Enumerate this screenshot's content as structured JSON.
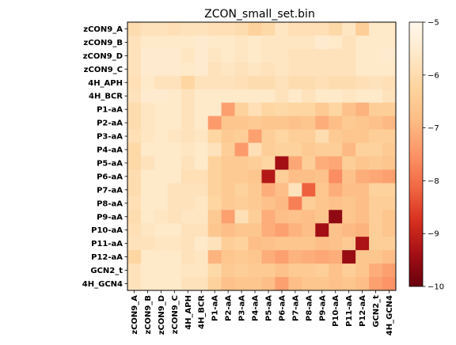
{
  "chart_data": {
    "type": "heatmap",
    "title": "ZCON_small_set.bin",
    "row_labels": [
      "zCON9_A",
      "zCON9_B",
      "zCON9_D",
      "zCON9_C",
      "4H_APH",
      "4H_BCR",
      "P1-aA",
      "P2-aA",
      "P3-aA",
      "P4-aA",
      "P5-aA",
      "P6-aA",
      "P7-aA",
      "P8-aA",
      "P9-aA",
      "P10-aA",
      "P11-aA",
      "P12-aA",
      "GCN2_t",
      "4H_GCN4"
    ],
    "col_labels": [
      "zCON9_A",
      "zCON9_B",
      "zCON9_D",
      "zCON9_C",
      "4H_APH",
      "4H_BCR",
      "P1-aA",
      "P2-aA",
      "P3-aA",
      "P4-aA",
      "P5-aA",
      "P6-aA",
      "P7-aA",
      "P8-aA",
      "P9-aA",
      "P10-aA",
      "P11-aA",
      "P12-aA",
      "GCN2_t",
      "4H_GCN4"
    ],
    "colormap": "OrRd_r",
    "vmin": -10,
    "vmax": -5,
    "colorbar_ticks": [
      "-5",
      "-6",
      "-7",
      "-8",
      "-9",
      "-10"
    ],
    "colors": [
      "#67000d",
      "#a50f15",
      "#d7301f",
      "#f16843",
      "#fc9467",
      "#fdbb84",
      "#fdd49e",
      "#fee8c8",
      "#fff7ec"
    ],
    "values": [
      [
        -6.0,
        -5.8,
        -5.8,
        -5.9,
        -5.8,
        -5.8,
        -5.9,
        -5.9,
        -6.0,
        -6.3,
        -6.1,
        -5.7,
        -5.9,
        -5.9,
        -5.9,
        -6.1,
        -5.7,
        -6.4,
        -5.6,
        -5.6
      ],
      [
        -5.8,
        -5.6,
        -5.6,
        -5.6,
        -5.6,
        -5.5,
        -5.6,
        -5.6,
        -5.7,
        -5.6,
        -5.7,
        -5.7,
        -5.7,
        -5.7,
        -5.5,
        -5.6,
        -5.8,
        -5.6,
        -5.6,
        -5.6
      ],
      [
        -5.8,
        -5.5,
        -5.5,
        -5.5,
        -5.7,
        -5.5,
        -5.7,
        -5.6,
        -5.7,
        -5.6,
        -5.7,
        -5.7,
        -5.8,
        -5.8,
        -5.8,
        -5.8,
        -5.8,
        -5.6,
        -5.6,
        -5.5
      ],
      [
        -5.8,
        -5.5,
        -5.5,
        -5.5,
        -5.6,
        -5.5,
        -5.8,
        -5.7,
        -5.8,
        -5.7,
        -5.8,
        -5.7,
        -5.8,
        -5.8,
        -5.8,
        -5.8,
        -5.8,
        -5.6,
        -5.6,
        -5.6
      ],
      [
        -5.9,
        -5.6,
        -5.8,
        -5.8,
        -6.2,
        -5.8,
        -5.8,
        -5.8,
        -5.9,
        -6.0,
        -6.0,
        -5.8,
        -6.0,
        -6.0,
        -5.9,
        -6.0,
        -6.0,
        -5.9,
        -5.8,
        -5.9
      ],
      [
        -5.8,
        -5.5,
        -5.5,
        -5.6,
        -5.8,
        -5.6,
        -5.6,
        -5.6,
        -5.6,
        -5.6,
        -5.6,
        -5.8,
        -5.6,
        -5.8,
        -5.6,
        -5.6,
        -5.7,
        -5.6,
        -5.6,
        -5.8
      ],
      [
        -6.0,
        -5.7,
        -5.6,
        -5.6,
        -5.8,
        -5.6,
        -5.6,
        -7.3,
        -6.3,
        -5.9,
        -6.2,
        -6.1,
        -6.2,
        -6.2,
        -6.5,
        -6.2,
        -6.7,
        -7.0,
        -6.4,
        -6.4
      ],
      [
        -6.0,
        -5.7,
        -5.6,
        -5.6,
        -5.8,
        -5.6,
        -7.4,
        -6.6,
        -6.6,
        -6.5,
        -6.6,
        -6.6,
        -6.7,
        -6.6,
        -7.1,
        -6.8,
        -6.5,
        -6.6,
        -6.7,
        -6.9
      ],
      [
        -5.9,
        -5.7,
        -5.6,
        -5.7,
        -5.8,
        -5.7,
        -6.2,
        -6.5,
        -6.4,
        -7.3,
        -6.4,
        -6.2,
        -6.4,
        -6.4,
        -6.0,
        -6.5,
        -6.6,
        -6.6,
        -6.4,
        -6.4
      ],
      [
        -6.1,
        -5.6,
        -5.6,
        -5.6,
        -5.7,
        -5.6,
        -5.8,
        -6.4,
        -7.4,
        -5.9,
        -6.4,
        -6.3,
        -6.3,
        -6.5,
        -6.4,
        -6.4,
        -6.9,
        -6.3,
        -6.3,
        -6.5
      ],
      [
        -6.1,
        -5.8,
        -5.6,
        -5.6,
        -5.8,
        -5.6,
        -6.3,
        -6.5,
        -6.5,
        -6.4,
        -6.2,
        -9.4,
        -7.2,
        -6.4,
        -7.1,
        -7.2,
        -6.4,
        -6.6,
        -6.5,
        -6.6
      ],
      [
        -6.0,
        -5.6,
        -5.6,
        -5.6,
        -5.9,
        -5.9,
        -6.3,
        -6.5,
        -6.5,
        -6.6,
        -9.2,
        -6.4,
        -6.8,
        -6.8,
        -6.7,
        -7.6,
        -6.7,
        -7.1,
        -7.2,
        -7.3
      ],
      [
        -6.0,
        -5.6,
        -5.6,
        -5.8,
        -5.8,
        -5.8,
        -6.3,
        -6.5,
        -6.3,
        -6.5,
        -7.1,
        -6.8,
        -5.8,
        -8.2,
        -6.6,
        -7.1,
        -6.8,
        -6.8,
        -6.3,
        -6.3
      ],
      [
        -5.9,
        -5.6,
        -5.6,
        -5.8,
        -5.8,
        -5.7,
        -6.2,
        -6.5,
        -6.4,
        -6.5,
        -6.7,
        -6.9,
        -7.8,
        -6.4,
        -6.6,
        -6.7,
        -6.6,
        -6.8,
        -6.4,
        -6.4
      ],
      [
        -6.0,
        -5.6,
        -5.7,
        -5.8,
        -5.7,
        -5.7,
        -6.5,
        -7.3,
        -5.9,
        -6.4,
        -7.1,
        -6.8,
        -6.7,
        -6.8,
        -6.6,
        -9.6,
        -6.6,
        -6.8,
        -6.4,
        -6.6
      ],
      [
        -5.9,
        -5.7,
        -5.6,
        -5.6,
        -5.8,
        -5.8,
        -6.6,
        -6.8,
        -6.6,
        -6.6,
        -7.1,
        -7.3,
        -7.0,
        -6.8,
        -9.4,
        -6.7,
        -6.9,
        -7.0,
        -6.4,
        -6.6
      ],
      [
        -5.8,
        -5.8,
        -5.7,
        -5.7,
        -5.8,
        -5.6,
        -5.8,
        -6.4,
        -6.3,
        -6.8,
        -6.7,
        -6.6,
        -6.6,
        -6.6,
        -6.8,
        -6.7,
        -6.5,
        -9.3,
        -6.4,
        -6.4
      ],
      [
        -6.2,
        -5.6,
        -5.6,
        -5.6,
        -5.8,
        -5.7,
        -7.0,
        -6.6,
        -6.5,
        -6.6,
        -7.1,
        -7.3,
        -7.0,
        -7.1,
        -7.2,
        -7.1,
        -9.5,
        -6.6,
        -6.6,
        -6.8
      ],
      [
        -5.8,
        -5.6,
        -5.6,
        -5.6,
        -5.7,
        -5.7,
        -6.1,
        -6.5,
        -6.4,
        -6.5,
        -6.5,
        -6.7,
        -6.5,
        -6.5,
        -6.4,
        -6.7,
        -6.4,
        -6.6,
        -7.1,
        -7.3
      ],
      [
        -5.8,
        -5.6,
        -5.6,
        -5.6,
        -5.8,
        -5.8,
        -6.3,
        -6.7,
        -6.6,
        -6.6,
        -6.8,
        -7.3,
        -6.8,
        -6.6,
        -6.6,
        -6.7,
        -6.6,
        -6.8,
        -7.3,
        -7.5
      ]
    ]
  }
}
